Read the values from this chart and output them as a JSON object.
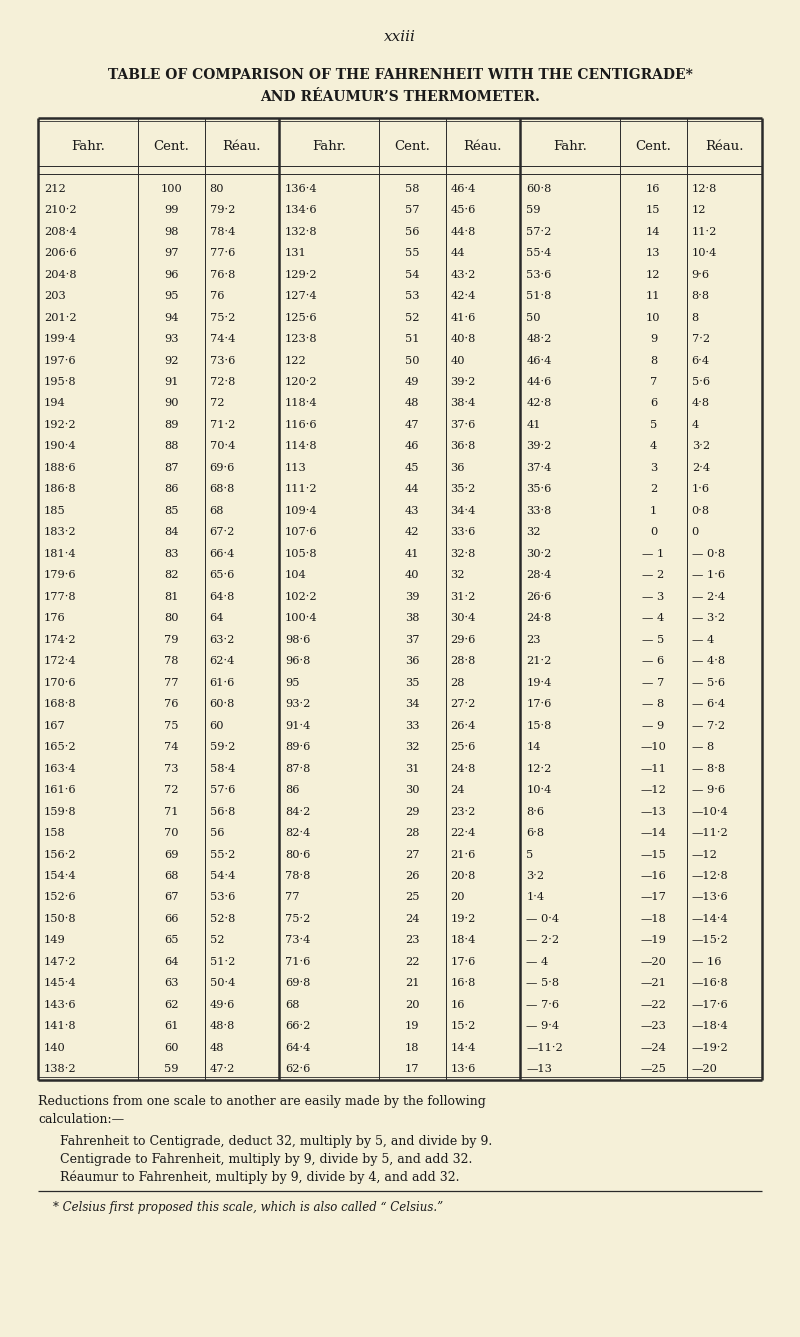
{
  "page_label": "xxiii",
  "title_line1": "TABLE OF COMPARISON OF THE FAHRENHEIT WITH THE CENTIGRADE*",
  "title_line2": "AND RÉAUMUR’S THERMOMETER.",
  "col_headers": [
    "Fahr.",
    "Cent.",
    "Réau.",
    "Fahr.",
    "Cent.",
    "Réau.",
    "Fahr.",
    "Cent.",
    "Réau."
  ],
  "table_data": [
    [
      "212",
      "100",
      "80",
      "136·4",
      "58",
      "46·4",
      "60·8",
      "16",
      "12·8"
    ],
    [
      "210·2",
      "99",
      "79·2",
      "134·6",
      "57",
      "45·6",
      "59",
      "15",
      "12"
    ],
    [
      "208·4",
      "98",
      "78·4",
      "132·8",
      "56",
      "44·8",
      "57·2",
      "14",
      "11·2"
    ],
    [
      "206·6",
      "97",
      "77·6",
      "131",
      "55",
      "44",
      "55·4",
      "13",
      "10·4"
    ],
    [
      "204·8",
      "96",
      "76·8",
      "129·2",
      "54",
      "43·2",
      "53·6",
      "12",
      "9·6"
    ],
    [
      "203",
      "95",
      "76",
      "127·4",
      "53",
      "42·4",
      "51·8",
      "11",
      "8·8"
    ],
    [
      "201·2",
      "94",
      "75·2",
      "125·6",
      "52",
      "41·6",
      "50",
      "10",
      "8"
    ],
    [
      "199·4",
      "93",
      "74·4",
      "123·8",
      "51",
      "40·8",
      "48·2",
      "9",
      "7·2"
    ],
    [
      "197·6",
      "92",
      "73·6",
      "122",
      "50",
      "40",
      "46·4",
      "8",
      "6·4"
    ],
    [
      "195·8",
      "91",
      "72·8",
      "120·2",
      "49",
      "39·2",
      "44·6",
      "7",
      "5·6"
    ],
    [
      "194",
      "90",
      "72",
      "118·4",
      "48",
      "38·4",
      "42·8",
      "6",
      "4·8"
    ],
    [
      "192·2",
      "89",
      "71·2",
      "116·6",
      "47",
      "37·6",
      "41",
      "5",
      "4"
    ],
    [
      "190·4",
      "88",
      "70·4",
      "114·8",
      "46",
      "36·8",
      "39·2",
      "4",
      "3·2"
    ],
    [
      "188·6",
      "87",
      "69·6",
      "113",
      "45",
      "36",
      "37·4",
      "3",
      "2·4"
    ],
    [
      "186·8",
      "86",
      "68·8",
      "111·2",
      "44",
      "35·2",
      "35·6",
      "2",
      "1·6"
    ],
    [
      "185",
      "85",
      "68",
      "109·4",
      "43",
      "34·4",
      "33·8",
      "1",
      "0·8"
    ],
    [
      "183·2",
      "84",
      "67·2",
      "107·6",
      "42",
      "33·6",
      "32",
      "0",
      "0"
    ],
    [
      "181·4",
      "83",
      "66·4",
      "105·8",
      "41",
      "32·8",
      "30·2",
      "— 1",
      "— 0·8"
    ],
    [
      "179·6",
      "82",
      "65·6",
      "104",
      "40",
      "32",
      "28·4",
      "— 2",
      "— 1·6"
    ],
    [
      "177·8",
      "81",
      "64·8",
      "102·2",
      "39",
      "31·2",
      "26·6",
      "— 3",
      "— 2·4"
    ],
    [
      "176",
      "80",
      "64",
      "100·4",
      "38",
      "30·4",
      "24·8",
      "— 4",
      "— 3·2"
    ],
    [
      "174·2",
      "79",
      "63·2",
      "98·6",
      "37",
      "29·6",
      "23",
      "— 5",
      "— 4"
    ],
    [
      "172·4",
      "78",
      "62·4",
      "96·8",
      "36",
      "28·8",
      "21·2",
      "— 6",
      "— 4·8"
    ],
    [
      "170·6",
      "77",
      "61·6",
      "95",
      "35",
      "28",
      "19·4",
      "— 7",
      "— 5·6"
    ],
    [
      "168·8",
      "76",
      "60·8",
      "93·2",
      "34",
      "27·2",
      "17·6",
      "— 8",
      "— 6·4"
    ],
    [
      "167",
      "75",
      "60",
      "91·4",
      "33",
      "26·4",
      "15·8",
      "— 9",
      "— 7·2"
    ],
    [
      "165·2",
      "74",
      "59·2",
      "89·6",
      "32",
      "25·6",
      "14",
      "—10",
      "— 8"
    ],
    [
      "163·4",
      "73",
      "58·4",
      "87·8",
      "31",
      "24·8",
      "12·2",
      "—11",
      "— 8·8"
    ],
    [
      "161·6",
      "72",
      "57·6",
      "86",
      "30",
      "24",
      "10·4",
      "—12",
      "— 9·6"
    ],
    [
      "159·8",
      "71",
      "56·8",
      "84·2",
      "29",
      "23·2",
      "8·6",
      "—13",
      "—10·4"
    ],
    [
      "158",
      "70",
      "56",
      "82·4",
      "28",
      "22·4",
      "6·8",
      "—14",
      "—11·2"
    ],
    [
      "156·2",
      "69",
      "55·2",
      "80·6",
      "27",
      "21·6",
      "5",
      "—15",
      "—12"
    ],
    [
      "154·4",
      "68",
      "54·4",
      "78·8",
      "26",
      "20·8",
      "3·2",
      "—16",
      "—12·8"
    ],
    [
      "152·6",
      "67",
      "53·6",
      "77",
      "25",
      "20",
      "1·4",
      "—17",
      "—13·6"
    ],
    [
      "150·8",
      "66",
      "52·8",
      "75·2",
      "24",
      "19·2",
      "— 0·4",
      "—18",
      "—14·4"
    ],
    [
      "149",
      "65",
      "52",
      "73·4",
      "23",
      "18·4",
      "— 2·2",
      "—19",
      "—15·2"
    ],
    [
      "147·2",
      "64",
      "51·2",
      "71·6",
      "22",
      "17·6",
      "— 4",
      "—20",
      "— 16"
    ],
    [
      "145·4",
      "63",
      "50·4",
      "69·8",
      "21",
      "16·8",
      "— 5·8",
      "—21",
      "—16·8"
    ],
    [
      "143·6",
      "62",
      "49·6",
      "68",
      "20",
      "16",
      "— 7·6",
      "—22",
      "—17·6"
    ],
    [
      "141·8",
      "61",
      "48·8",
      "66·2",
      "19",
      "15·2",
      "— 9·4",
      "—23",
      "—18·4"
    ],
    [
      "140",
      "60",
      "48",
      "64·4",
      "18",
      "14·4",
      "—11·2",
      "—24",
      "—19·2"
    ],
    [
      "138·2",
      "59",
      "47·2",
      "62·6",
      "17",
      "13·6",
      "—13",
      "—25",
      "—20"
    ]
  ],
  "footer_text1": "Reductions from one scale to another are easily made by the following",
  "footer_text2": "calculation:—",
  "footer_indent1": "Fahrenheit to Centigrade, deduct 32, multiply by 5, and divide by 9.",
  "footer_indent2": "Centigrade to Fahrenheit, multiply by 9, divide by 5, and add 32.",
  "footer_indent3": "Réaumur to Fahrenheit, multiply by 9, divide by 4, and add 32.",
  "footnote": "* Celsius first proposed this scale, which is also called “ Celsius.”",
  "bg_color": "#f5f0d8",
  "text_color": "#1a1a1a",
  "border_color": "#2a2a2a"
}
